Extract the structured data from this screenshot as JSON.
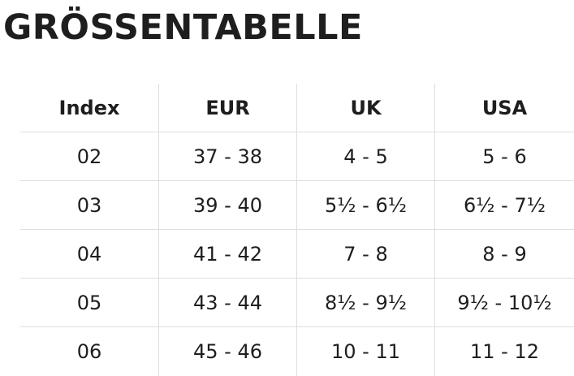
{
  "header": {
    "title": "GRÖSSENTABELLE"
  },
  "table": {
    "columns": [
      "Index",
      "EUR",
      "UK",
      "USA"
    ],
    "rows": [
      [
        "02",
        "37 - 38",
        "4 - 5",
        "5 - 6"
      ],
      [
        "03",
        "39 - 40",
        "5½ - 6½",
        "6½ - 7½"
      ],
      [
        "04",
        "41 - 42",
        "7 - 8",
        "8 - 9"
      ],
      [
        "05",
        "43 - 44",
        "8½ - 9½",
        "9½ - 10½"
      ],
      [
        "06",
        "45 - 46",
        "10 - 11",
        "11 - 12"
      ]
    ]
  }
}
